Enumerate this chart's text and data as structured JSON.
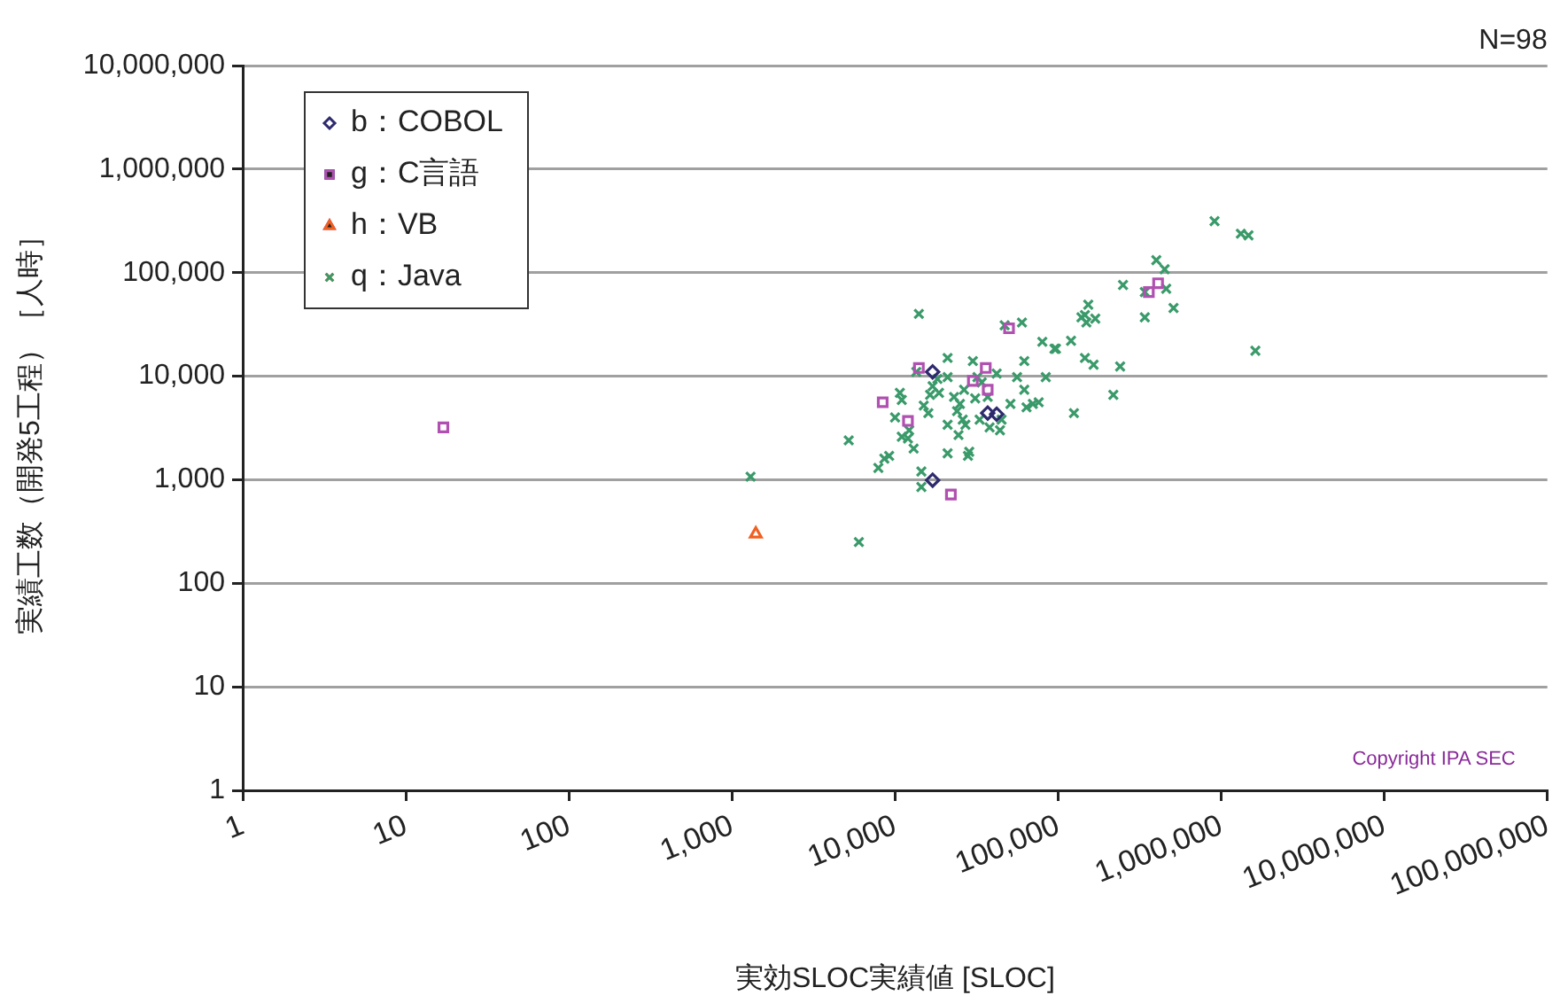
{
  "chart_data": {
    "type": "scatter",
    "xlabel": "実効SLOC実績値 [SLOC]",
    "ylabel": "実績工数（開発5工程）［人時］",
    "log": "xy",
    "grid": "y",
    "legend": "top left",
    "xlim": [
      1,
      100000000
    ],
    "xticks": [
      {
        "value": 1,
        "label": "1"
      },
      {
        "value": 10,
        "label": "10"
      },
      {
        "value": 100,
        "label": "100"
      },
      {
        "value": 1000,
        "label": "1,000"
      },
      {
        "value": 10000,
        "label": "10,000"
      },
      {
        "value": 100000,
        "label": "100,000"
      },
      {
        "value": 1000000,
        "label": "1,000,000"
      },
      {
        "value": 10000000,
        "label": "10,000,000"
      },
      {
        "value": 100000000,
        "label": "100,000,000"
      }
    ],
    "ylim": [
      1,
      10000000
    ],
    "yticks": [
      {
        "value": 1,
        "label": "1"
      },
      {
        "value": 10,
        "label": "10"
      },
      {
        "value": 100,
        "label": "100"
      },
      {
        "value": 1000,
        "label": "1,000"
      },
      {
        "value": 10000,
        "label": "10,000"
      },
      {
        "value": 100000,
        "label": "100,000"
      },
      {
        "value": 1000000,
        "label": "1,000,000"
      },
      {
        "value": 10000000,
        "label": "10,000,000"
      }
    ],
    "annotations": [
      "N=98",
      "Copyright IPA SEC"
    ],
    "series": [
      {
        "name": "b：COBOL",
        "color": "#2e2a6e",
        "marker": "diamond",
        "x": [
          17000,
          37000,
          42000,
          17000
        ],
        "values": [
          11000,
          4400,
          4300,
          990
        ]
      },
      {
        "name": "g：C言語",
        "color": "#b050b0",
        "marker": "square",
        "x": [
          17,
          8400,
          12000,
          14000,
          22000,
          30000,
          36000,
          37000,
          50000,
          360000,
          410000
        ],
        "values": [
          3200,
          5600,
          3700,
          12000,
          720,
          9000,
          12000,
          7400,
          29000,
          65000,
          79000
        ]
      },
      {
        "name": "h：VB",
        "color": "#f06020",
        "marker": "triangle",
        "x": [
          1400
        ],
        "values": [
          300
        ]
      },
      {
        "name": "q：Java",
        "color": "#3a9a6a",
        "marker": "cross",
        "x": [
          1300,
          6000,
          5200,
          7900,
          8600,
          9200,
          14500,
          14500,
          11000,
          12000,
          13000,
          10700,
          11000,
          10000,
          12200,
          14000,
          21000,
          30000,
          13500,
          17000,
          18600,
          16400,
          21000,
          26500,
          32000,
          34000,
          25000,
          24000,
          26000,
          27000,
          21000,
          33000,
          45000,
          44000,
          21000,
          28000,
          47000,
          60000,
          80000,
          95000,
          120000,
          146000,
          146000,
          62000,
          56000,
          84000,
          62000,
          70000,
          64000,
          125000,
          51000,
          910000,
          1320000,
          1470000,
          400000,
          450000,
          250000,
          460000,
          340000,
          510000,
          340000,
          153000,
          139000,
          169000,
          149000,
          97000,
          165000,
          240000,
          1620000,
          218000,
          76000,
          28500,
          18200,
          31000,
          37000,
          23000,
          16000,
          38000,
          15000,
          24500,
          42000
        ],
        "values": [
          1070,
          250,
          2400,
          1300,
          1600,
          1700,
          1200,
          850,
          2600,
          2500,
          2000,
          6900,
          5900,
          4000,
          3000,
          40000,
          15000,
          14000,
          11000,
          8000,
          6900,
          6600,
          9800,
          7400,
          9800,
          8700,
          5400,
          4600,
          3800,
          3400,
          3400,
          3800,
          3800,
          3000,
          1800,
          1700,
          31000,
          33000,
          21500,
          18400,
          22000,
          15000,
          39000,
          14000,
          9800,
          9800,
          7400,
          5400,
          5000,
          4400,
          5400,
          314000,
          238000,
          229000,
          132000,
          108000,
          76000,
          70000,
          65000,
          45500,
          37000,
          49000,
          37000,
          36000,
          33000,
          18400,
          12900,
          12400,
          17600,
          6600,
          5600,
          1860,
          9400,
          6100,
          6300,
          6300,
          4400,
          3200,
          5200,
          2700,
          10600
        ]
      }
    ]
  }
}
